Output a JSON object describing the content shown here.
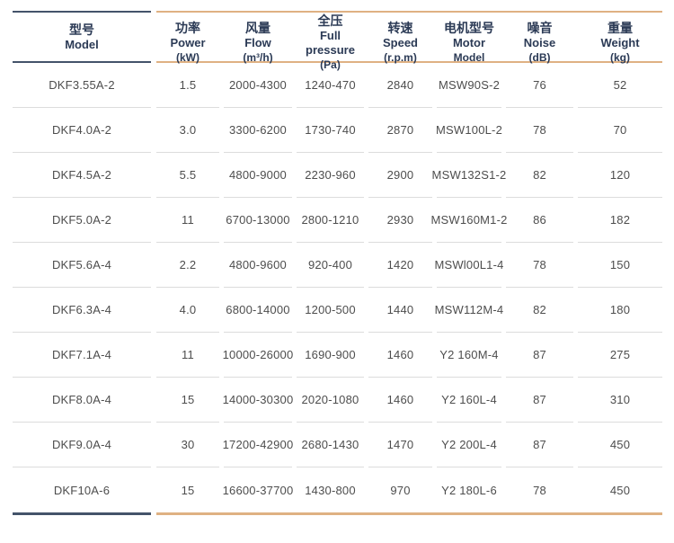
{
  "colors": {
    "accent_navy": "#44536a",
    "accent_tan": "#dfb183",
    "header_text": "#2b3a55",
    "body_text": "#4d4d4d",
    "row_separator": "#dcdcdc",
    "background": "#ffffff"
  },
  "table": {
    "columns": [
      {
        "lines": [
          "型号",
          "Model"
        ]
      },
      {
        "lines": [
          "功率",
          "Power",
          "(kW)"
        ]
      },
      {
        "lines": [
          "风量",
          "Flow",
          "(m³/h)"
        ]
      },
      {
        "lines": [
          "全压",
          "Full pressure",
          "(Pa)"
        ]
      },
      {
        "lines": [
          "转速",
          "Speed",
          "(r.p.m)"
        ]
      },
      {
        "lines": [
          "电机型号",
          "Motor",
          "Model"
        ]
      },
      {
        "lines": [
          "噪音",
          "Noise",
          "(dB)"
        ]
      },
      {
        "lines": [
          "重量",
          "Weight",
          "(kg)"
        ]
      }
    ],
    "rows": [
      [
        "DKF3.55A-2",
        "1.5",
        "2000-4300",
        "1240-470",
        "2840",
        "MSW90S-2",
        "76",
        "52"
      ],
      [
        "DKF4.0A-2",
        "3.0",
        "3300-6200",
        "1730-740",
        "2870",
        "MSW100L-2",
        "78",
        "70"
      ],
      [
        "DKF4.5A-2",
        "5.5",
        "4800-9000",
        "2230-960",
        "2900",
        "MSW132S1-2",
        "82",
        "120"
      ],
      [
        "DKF5.0A-2",
        "11",
        "6700-13000",
        "2800-1210",
        "2930",
        "MSW160M1-2",
        "86",
        "182"
      ],
      [
        "DKF5.6A-4",
        "2.2",
        "4800-9600",
        "920-400",
        "1420",
        "MSWl00L1-4",
        "78",
        "150"
      ],
      [
        "DKF6.3A-4",
        "4.0",
        "6800-14000",
        "1200-500",
        "1440",
        "MSW112M-4",
        "82",
        "180"
      ],
      [
        "DKF7.1A-4",
        "11",
        "10000-26000",
        "1690-900",
        "1460",
        "Y2 160M-4",
        "87",
        "275"
      ],
      [
        "DKF8.0A-4",
        "15",
        "14000-30300",
        "2020-1080",
        "1460",
        "Y2 160L-4",
        "87",
        "310"
      ],
      [
        "DKF9.0A-4",
        "30",
        "17200-42900",
        "2680-1430",
        "1470",
        "Y2 200L-4",
        "87",
        "450"
      ],
      [
        "DKF10A-6",
        "15",
        "16600-37700",
        "1430-800",
        "970",
        "Y2 180L-6",
        "78",
        "450"
      ]
    ]
  }
}
